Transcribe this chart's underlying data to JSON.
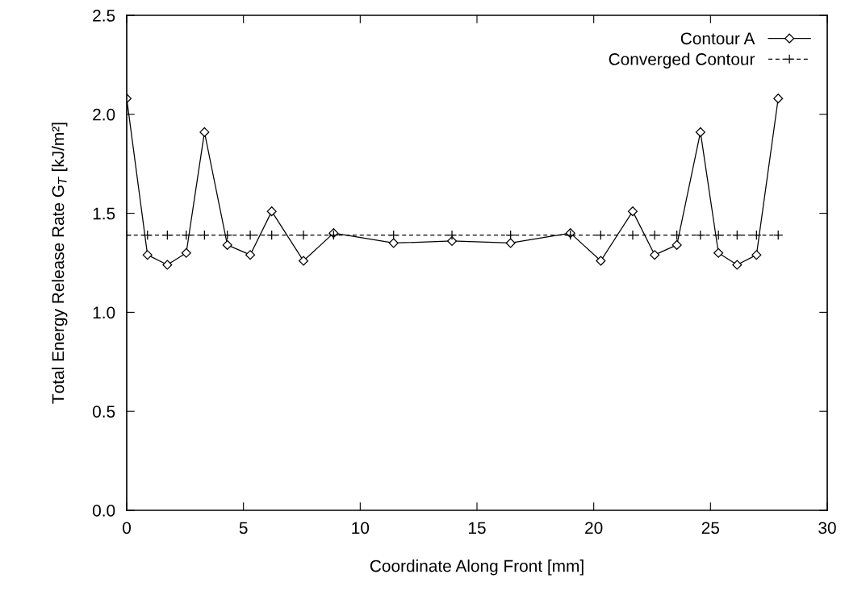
{
  "chart_data": {
    "type": "line",
    "xlabel": "Coordinate Along Front [mm]",
    "ylabel": "Total Energy Release Rate G$_{T}$ [kJ/m²]",
    "x": [
      0,
      0.89,
      1.74,
      2.55,
      3.33,
      4.31,
      5.29,
      6.21,
      7.57,
      8.86,
      11.43,
      13.93,
      16.44,
      19.0,
      20.3,
      21.67,
      22.61,
      23.56,
      24.57,
      25.34,
      26.14,
      26.97,
      27.9
    ],
    "series": [
      {
        "name": "Contour A",
        "color": "#000000",
        "marker": "diamond",
        "line_style": "solid",
        "values": [
          2.08,
          1.29,
          1.24,
          1.3,
          1.91,
          1.34,
          1.29,
          1.51,
          1.26,
          1.4,
          1.35,
          1.36,
          1.35,
          1.4,
          1.26,
          1.51,
          1.29,
          1.34,
          1.91,
          1.3,
          1.24,
          1.29,
          2.08
        ]
      },
      {
        "name": "Converged Contour",
        "color": "#000000",
        "marker": "cross",
        "line_style": "dashed",
        "values": [
          1.39,
          1.39,
          1.39,
          1.39,
          1.39,
          1.39,
          1.39,
          1.39,
          1.39,
          1.39,
          1.39,
          1.39,
          1.39,
          1.39,
          1.39,
          1.39,
          1.39,
          1.39,
          1.39,
          1.39,
          1.39,
          1.39,
          1.39
        ]
      }
    ],
    "xlim": [
      0,
      30
    ],
    "xticks": [
      0,
      5,
      10,
      15,
      20,
      25,
      30
    ],
    "ylim": [
      0,
      2.5
    ],
    "yticks": [
      {
        "value": 0,
        "label": "0.0"
      },
      {
        "value": 0.5,
        "label": "0.5"
      },
      {
        "value": 1,
        "label": "1.0"
      },
      {
        "value": 1.5,
        "label": "1.5"
      },
      {
        "value": 2,
        "label": "2.0"
      },
      {
        "value": 2.5,
        "label": "2.5"
      }
    ],
    "grid": false,
    "legend": "top right"
  }
}
